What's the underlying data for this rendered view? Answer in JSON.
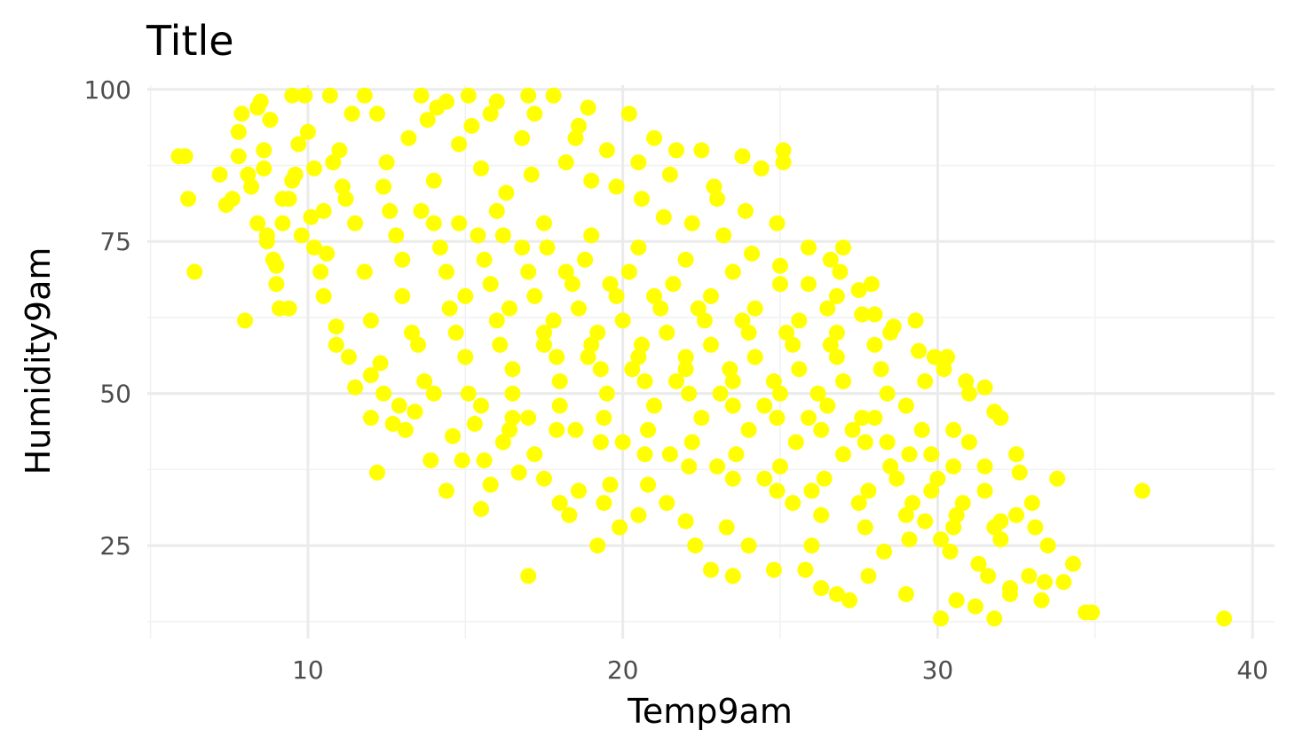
{
  "chart_data": {
    "type": "scatter",
    "title": "Title",
    "xlabel": "Temp9am",
    "ylabel": "Humidity9am",
    "xlim": [
      4.9,
      40.7
    ],
    "ylim": [
      9.7,
      100.7
    ],
    "x_ticks": [
      10,
      20,
      30,
      40
    ],
    "y_ticks": [
      25,
      50,
      75,
      100
    ],
    "x_minor_ticks": [
      5,
      15,
      25,
      35
    ],
    "y_minor_ticks": [
      12.5,
      37.5,
      62.5,
      87.5
    ],
    "x_tick_labels": [
      "10",
      "20",
      "30",
      "40"
    ],
    "y_tick_labels": [
      "25",
      "50",
      "75",
      "100"
    ],
    "point_color": "#ffff00",
    "grid": true,
    "legend": "none",
    "points": [
      [
        5.9,
        89
      ],
      [
        6.1,
        89
      ],
      [
        6.2,
        82
      ],
      [
        6.4,
        70
      ],
      [
        7.2,
        86
      ],
      [
        7.4,
        81
      ],
      [
        7.6,
        82
      ],
      [
        7.8,
        93
      ],
      [
        7.8,
        89
      ],
      [
        7.9,
        96
      ],
      [
        8.0,
        62
      ],
      [
        8.1,
        86
      ],
      [
        8.2,
        84
      ],
      [
        8.4,
        97
      ],
      [
        8.5,
        98
      ],
      [
        8.6,
        87
      ],
      [
        8.6,
        90
      ],
      [
        8.7,
        76
      ],
      [
        8.7,
        75
      ],
      [
        8.8,
        95
      ],
      [
        9.0,
        71
      ],
      [
        9.0,
        68
      ],
      [
        9.1,
        64
      ],
      [
        9.2,
        78
      ],
      [
        9.2,
        82
      ],
      [
        9.4,
        64
      ],
      [
        9.5,
        99
      ],
      [
        9.6,
        86
      ],
      [
        9.7,
        91
      ],
      [
        9.9,
        99
      ],
      [
        10.1,
        79
      ],
      [
        10.2,
        74
      ],
      [
        10.4,
        70
      ],
      [
        10.5,
        66
      ],
      [
        10.7,
        99
      ],
      [
        10.9,
        61
      ],
      [
        10.9,
        58
      ],
      [
        11.1,
        84
      ],
      [
        11.3,
        56
      ],
      [
        11.5,
        51
      ],
      [
        11.8,
        99
      ],
      [
        12.0,
        53
      ],
      [
        12.0,
        46
      ],
      [
        12.2,
        37
      ],
      [
        12.4,
        50
      ],
      [
        12.7,
        45
      ],
      [
        12.9,
        48
      ],
      [
        13.1,
        44
      ],
      [
        13.4,
        47
      ],
      [
        13.6,
        99
      ],
      [
        13.9,
        39
      ],
      [
        14.1,
        97
      ],
      [
        14.4,
        34
      ],
      [
        14.6,
        43
      ],
      [
        14.9,
        39
      ],
      [
        15.1,
        99
      ],
      [
        15.3,
        45
      ],
      [
        15.5,
        31
      ],
      [
        15.6,
        39
      ],
      [
        15.8,
        35
      ],
      [
        16.0,
        98
      ],
      [
        16.2,
        42
      ],
      [
        16.4,
        44
      ],
      [
        16.7,
        37
      ],
      [
        17.0,
        99
      ],
      [
        17.0,
        20
      ],
      [
        17.2,
        40
      ],
      [
        17.5,
        36
      ],
      [
        17.8,
        99
      ],
      [
        18.0,
        32
      ],
      [
        18.3,
        30
      ],
      [
        18.6,
        34
      ],
      [
        18.9,
        97
      ],
      [
        19.2,
        25
      ],
      [
        19.4,
        32
      ],
      [
        19.6,
        35
      ],
      [
        19.9,
        28
      ],
      [
        20.2,
        96
      ],
      [
        20.5,
        30
      ],
      [
        20.8,
        35
      ],
      [
        21.0,
        92
      ],
      [
        21.4,
        32
      ],
      [
        21.7,
        90
      ],
      [
        22.0,
        29
      ],
      [
        22.3,
        25
      ],
      [
        22.5,
        90
      ],
      [
        22.8,
        21
      ],
      [
        23.0,
        82
      ],
      [
        23.3,
        28
      ],
      [
        23.5,
        20
      ],
      [
        23.8,
        89
      ],
      [
        24.0,
        25
      ],
      [
        24.4,
        87
      ],
      [
        24.8,
        21
      ],
      [
        25.1,
        90
      ],
      [
        25.1,
        88
      ],
      [
        25.4,
        32
      ],
      [
        25.8,
        21
      ],
      [
        26.0,
        25
      ],
      [
        26.3,
        18
      ],
      [
        26.6,
        72
      ],
      [
        26.8,
        17
      ],
      [
        27.0,
        74
      ],
      [
        27.2,
        16
      ],
      [
        27.5,
        67
      ],
      [
        27.8,
        20
      ],
      [
        28.0,
        63
      ],
      [
        28.3,
        24
      ],
      [
        28.6,
        61
      ],
      [
        29.0,
        17
      ],
      [
        29.3,
        62
      ],
      [
        29.6,
        29
      ],
      [
        29.9,
        56
      ],
      [
        30.1,
        13
      ],
      [
        30.3,
        56
      ],
      [
        30.6,
        16
      ],
      [
        30.9,
        52
      ],
      [
        31.2,
        15
      ],
      [
        31.5,
        51
      ],
      [
        31.8,
        13
      ],
      [
        32.0,
        46
      ],
      [
        32.3,
        17
      ],
      [
        32.6,
        37
      ],
      [
        32.9,
        20
      ],
      [
        33.1,
        28
      ],
      [
        33.4,
        19
      ],
      [
        33.8,
        36
      ],
      [
        34.0,
        19
      ],
      [
        34.7,
        14
      ],
      [
        34.9,
        14
      ],
      [
        36.5,
        34
      ],
      [
        39.1,
        13
      ],
      [
        12.5,
        88
      ],
      [
        13.2,
        92
      ],
      [
        14.0,
        85
      ],
      [
        14.8,
        91
      ],
      [
        15.5,
        87
      ],
      [
        16.3,
        83
      ],
      [
        17.1,
        86
      ],
      [
        11.0,
        90
      ],
      [
        10.0,
        93
      ],
      [
        12.2,
        96
      ],
      [
        13.8,
        95
      ],
      [
        15.2,
        94
      ],
      [
        16.8,
        92
      ],
      [
        18.2,
        88
      ],
      [
        19.0,
        85
      ],
      [
        19.8,
        84
      ],
      [
        20.6,
        82
      ],
      [
        21.3,
        79
      ],
      [
        22.2,
        78
      ],
      [
        23.2,
        76
      ],
      [
        24.1,
        73
      ],
      [
        25.0,
        71
      ],
      [
        25.9,
        68
      ],
      [
        26.8,
        66
      ],
      [
        27.6,
        63
      ],
      [
        28.5,
        60
      ],
      [
        29.4,
        57
      ],
      [
        30.2,
        54
      ],
      [
        31.0,
        50
      ],
      [
        31.8,
        47
      ],
      [
        11.5,
        78
      ],
      [
        12.8,
        76
      ],
      [
        14.2,
        74
      ],
      [
        15.6,
        72
      ],
      [
        17.0,
        70
      ],
      [
        18.4,
        68
      ],
      [
        19.8,
        66
      ],
      [
        21.2,
        64
      ],
      [
        22.6,
        62
      ],
      [
        24.0,
        60
      ],
      [
        25.4,
        58
      ],
      [
        26.8,
        56
      ],
      [
        28.2,
        54
      ],
      [
        29.6,
        52
      ],
      [
        10.5,
        80
      ],
      [
        11.8,
        70
      ],
      [
        13.0,
        66
      ],
      [
        14.5,
        64
      ],
      [
        16.0,
        62
      ],
      [
        17.5,
        60
      ],
      [
        19.0,
        58
      ],
      [
        20.5,
        56
      ],
      [
        22.0,
        54
      ],
      [
        23.5,
        52
      ],
      [
        25.0,
        50
      ],
      [
        26.5,
        48
      ],
      [
        28.0,
        46
      ],
      [
        29.5,
        44
      ],
      [
        31.0,
        42
      ],
      [
        32.5,
        40
      ],
      [
        12.0,
        62
      ],
      [
        13.5,
        58
      ],
      [
        15.0,
        56
      ],
      [
        16.5,
        54
      ],
      [
        18.0,
        52
      ],
      [
        19.5,
        50
      ],
      [
        21.0,
        48
      ],
      [
        22.5,
        46
      ],
      [
        24.0,
        44
      ],
      [
        25.5,
        42
      ],
      [
        27.0,
        40
      ],
      [
        28.5,
        38
      ],
      [
        30.0,
        36
      ],
      [
        31.5,
        34
      ],
      [
        33.0,
        32
      ],
      [
        14.0,
        50
      ],
      [
        15.5,
        48
      ],
      [
        17.0,
        46
      ],
      [
        18.5,
        44
      ],
      [
        20.0,
        42
      ],
      [
        21.5,
        40
      ],
      [
        23.0,
        38
      ],
      [
        24.5,
        36
      ],
      [
        26.0,
        34
      ],
      [
        27.5,
        32
      ],
      [
        29.0,
        30
      ],
      [
        30.5,
        28
      ],
      [
        32.0,
        26
      ],
      [
        16.0,
        80
      ],
      [
        17.5,
        78
      ],
      [
        19.0,
        76
      ],
      [
        20.5,
        74
      ],
      [
        22.0,
        72
      ],
      [
        23.5,
        70
      ],
      [
        25.0,
        68
      ],
      [
        26.5,
        64
      ],
      [
        28.0,
        58
      ],
      [
        29.0,
        48
      ],
      [
        30.5,
        44
      ],
      [
        31.5,
        38
      ],
      [
        32.5,
        30
      ],
      [
        33.5,
        25
      ],
      [
        9.5,
        85
      ],
      [
        10.8,
        88
      ],
      [
        12.4,
        84
      ],
      [
        13.6,
        80
      ],
      [
        14.8,
        78
      ],
      [
        16.2,
        76
      ],
      [
        17.6,
        74
      ],
      [
        18.8,
        72
      ],
      [
        20.2,
        70
      ],
      [
        21.6,
        68
      ],
      [
        22.8,
        66
      ],
      [
        24.2,
        64
      ],
      [
        25.6,
        62
      ],
      [
        26.8,
        60
      ],
      [
        28.4,
        50
      ],
      [
        29.8,
        40
      ],
      [
        30.8,
        32
      ],
      [
        31.8,
        28
      ],
      [
        15.0,
        66
      ],
      [
        16.4,
        64
      ],
      [
        17.8,
        62
      ],
      [
        19.2,
        60
      ],
      [
        20.6,
        58
      ],
      [
        22.0,
        56
      ],
      [
        23.4,
        54
      ],
      [
        24.8,
        52
      ],
      [
        26.2,
        50
      ],
      [
        27.6,
        46
      ],
      [
        13.0,
        72
      ],
      [
        14.4,
        70
      ],
      [
        15.8,
        68
      ],
      [
        17.2,
        66
      ],
      [
        18.6,
        64
      ],
      [
        20.0,
        62
      ],
      [
        21.4,
        60
      ],
      [
        22.8,
        58
      ],
      [
        24.2,
        56
      ],
      [
        25.6,
        54
      ],
      [
        27.0,
        52
      ],
      [
        28.4,
        42
      ],
      [
        29.8,
        34
      ],
      [
        11.2,
        82
      ],
      [
        12.6,
        80
      ],
      [
        14.0,
        78
      ],
      [
        15.4,
        76
      ],
      [
        16.8,
        74
      ],
      [
        18.2,
        70
      ],
      [
        19.6,
        68
      ],
      [
        21.0,
        66
      ],
      [
        22.4,
        64
      ],
      [
        23.8,
        62
      ],
      [
        25.2,
        60
      ],
      [
        26.6,
        58
      ],
      [
        18.0,
        48
      ],
      [
        19.4,
        46
      ],
      [
        20.8,
        44
      ],
      [
        22.2,
        42
      ],
      [
        23.6,
        40
      ],
      [
        25.0,
        38
      ],
      [
        26.4,
        36
      ],
      [
        27.8,
        34
      ],
      [
        29.2,
        32
      ],
      [
        30.6,
        30
      ],
      [
        32.0,
        29
      ],
      [
        16.5,
        50
      ],
      [
        17.9,
        56
      ],
      [
        19.3,
        54
      ],
      [
        20.7,
        52
      ],
      [
        22.1,
        50
      ],
      [
        23.5,
        48
      ],
      [
        24.9,
        46
      ],
      [
        26.3,
        44
      ],
      [
        27.7,
        42
      ],
      [
        29.1,
        40
      ],
      [
        30.5,
        38
      ],
      [
        13.3,
        60
      ],
      [
        14.7,
        60
      ],
      [
        16.1,
        58
      ],
      [
        17.5,
        58
      ],
      [
        18.9,
        56
      ],
      [
        20.3,
        54
      ],
      [
        21.7,
        52
      ],
      [
        23.1,
        50
      ],
      [
        24.5,
        48
      ],
      [
        25.9,
        46
      ],
      [
        27.3,
        44
      ],
      [
        28.7,
        36
      ],
      [
        30.1,
        26
      ],
      [
        31.3,
        22
      ],
      [
        32.3,
        18
      ],
      [
        33.3,
        16
      ],
      [
        34.3,
        22
      ],
      [
        12.3,
        55
      ],
      [
        13.7,
        52
      ],
      [
        15.1,
        50
      ],
      [
        16.5,
        46
      ],
      [
        17.9,
        44
      ],
      [
        19.3,
        42
      ],
      [
        20.7,
        40
      ],
      [
        22.1,
        38
      ],
      [
        23.5,
        36
      ],
      [
        24.9,
        34
      ],
      [
        26.3,
        30
      ],
      [
        27.7,
        28
      ],
      [
        29.1,
        26
      ],
      [
        30.4,
        24
      ],
      [
        31.6,
        20
      ],
      [
        21.5,
        86
      ],
      [
        22.9,
        84
      ],
      [
        23.9,
        80
      ],
      [
        24.9,
        78
      ],
      [
        25.9,
        74
      ],
      [
        26.9,
        70
      ],
      [
        27.9,
        68
      ],
      [
        18.5,
        92
      ],
      [
        19.5,
        90
      ],
      [
        20.5,
        88
      ],
      [
        15.8,
        96
      ],
      [
        17.2,
        96
      ],
      [
        18.6,
        94
      ],
      [
        14.4,
        98
      ],
      [
        11.4,
        96
      ],
      [
        10.2,
        87
      ],
      [
        9.4,
        82
      ],
      [
        8.4,
        78
      ],
      [
        8.9,
        72
      ],
      [
        9.8,
        76
      ],
      [
        10.6,
        73
      ]
    ]
  }
}
